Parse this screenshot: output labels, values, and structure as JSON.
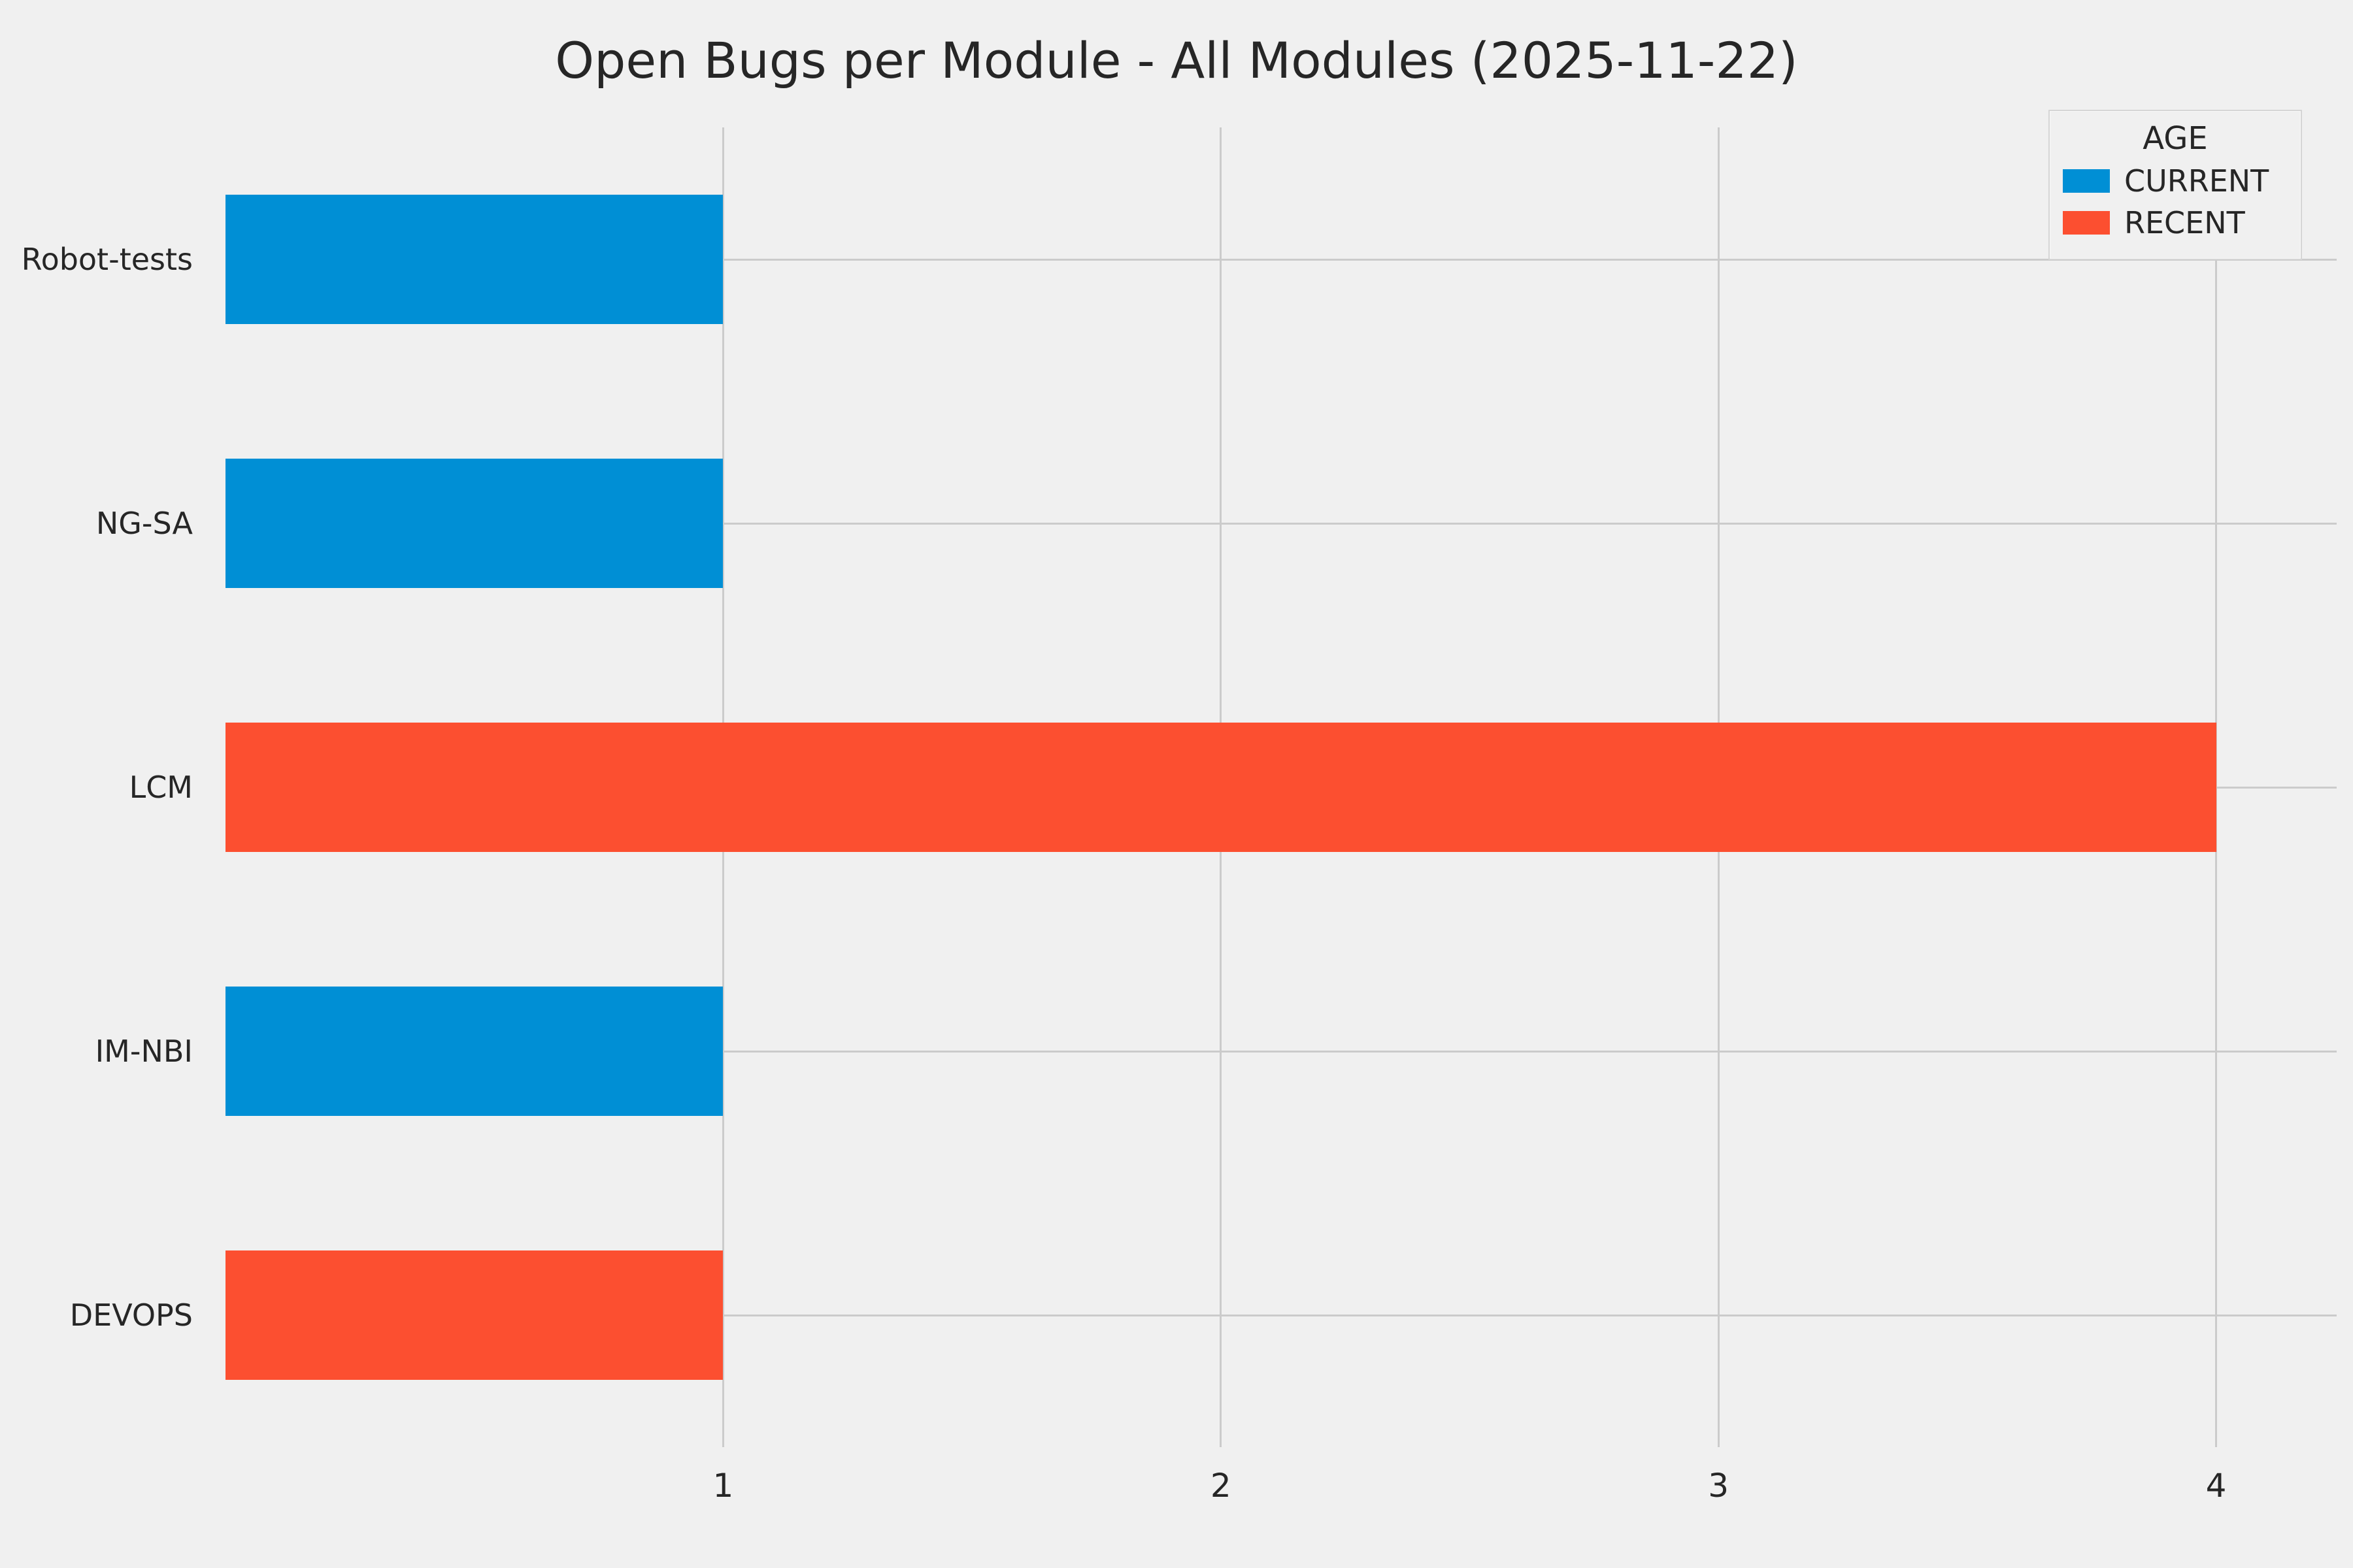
{
  "chart_data": {
    "type": "bar",
    "orientation": "horizontal",
    "title": "Open Bugs per Module - All Modules (2025-11-22)",
    "categories": [
      "Robot-tests",
      "NG-SA",
      "LCM",
      "IM-NBI",
      "DEVOPS"
    ],
    "values": [
      1,
      1,
      4,
      1,
      1
    ],
    "bar_series": [
      "CURRENT",
      "CURRENT",
      "RECENT",
      "CURRENT",
      "RECENT"
    ],
    "series_colors": {
      "CURRENT": "#008fd5",
      "RECENT": "#fc4f30"
    },
    "xlim": [
      0,
      4.17
    ],
    "xticks": [
      1,
      2,
      3,
      4
    ],
    "grid": true,
    "gridline_color": "#cbcbcb",
    "background_color": "#f0f0f0",
    "legend": {
      "title": "AGE",
      "position": "top-right",
      "entries": [
        {
          "label": "CURRENT",
          "color": "#008fd5"
        },
        {
          "label": "RECENT",
          "color": "#fc4f30"
        }
      ]
    },
    "xlabel": "",
    "ylabel": ""
  }
}
